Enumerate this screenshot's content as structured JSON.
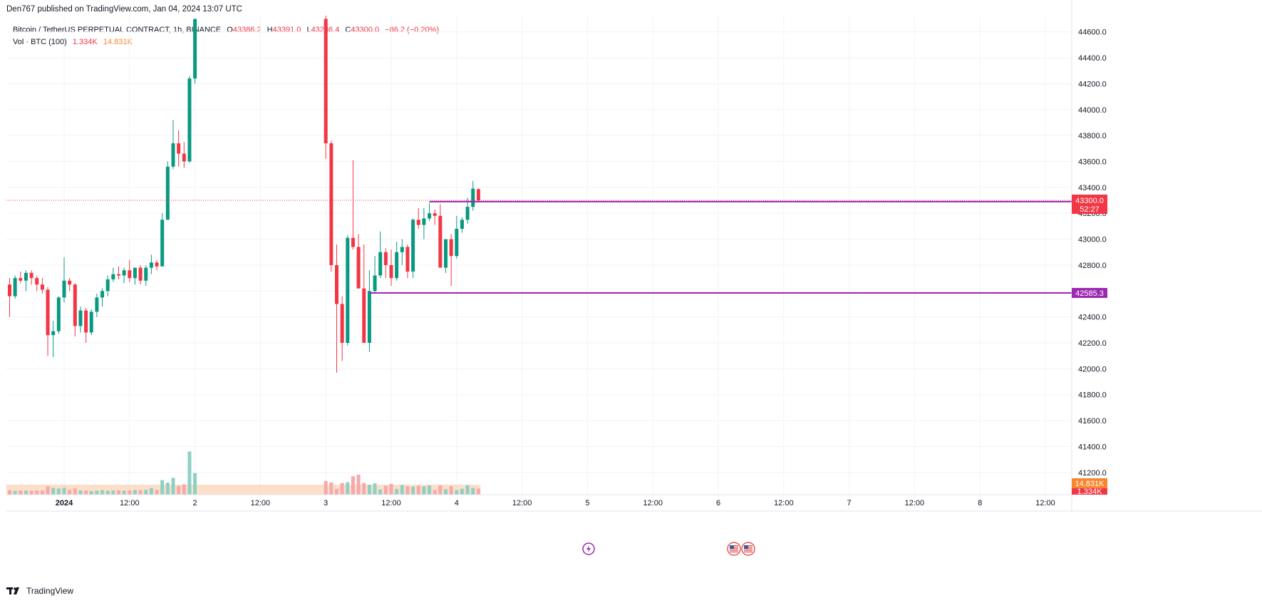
{
  "header": {
    "published_by": "Den767 published on TradingView.com, Jan 04, 2024 13:07 UTC"
  },
  "legend": {
    "symbol": "Bitcoin / TetherUS PERPETUAL CONTRACT, 1h, BINANCE",
    "open_label": "O",
    "open": "43386.2",
    "high_label": "H",
    "high": "43391.0",
    "low_label": "L",
    "low": "43286.4",
    "close_label": "C",
    "close": "43300.0",
    "change": "−86.2 (−0.20%)",
    "volume_label": "Vol · BTC (100)",
    "volume_value": "1.334K",
    "volume_ma": "14.831K"
  },
  "footer": {
    "brand": "TradingView"
  },
  "colors": {
    "up": "#089981",
    "down": "#f23645",
    "up_volume": "#8fd0c4",
    "down_volume": "#f7a8aa",
    "level": "#9c27b0",
    "price_badge": "#f23645",
    "volume_ma_badge": "#f7862f",
    "volume_ma_fill": "#f9c59c"
  },
  "icons": [
    "lightning-icon",
    "us-flag-icon",
    "us-flag-icon"
  ],
  "chart_data": {
    "type": "candlestick",
    "title": "Bitcoin / TetherUS PERPETUAL CONTRACT, 1h, BINANCE",
    "timeframe": "1h",
    "ylim": [
      41100,
      44700
    ],
    "price_ticks": [
      41200,
      41400,
      41600,
      41800,
      42000,
      42200,
      42400,
      42600,
      42800,
      43000,
      43200,
      43400,
      43600,
      43800,
      44000,
      44200,
      44400,
      44600
    ],
    "price_tick_labels": [
      "41200.0",
      "41400.0",
      "41600.0",
      "41800.0",
      "42000.0",
      "42200.0",
      "42400.0",
      "42600.0",
      "42800.0",
      "43000.0",
      "43200.0",
      "43400.0",
      "43600.0",
      "43800.0",
      "44000.0",
      "44200.0",
      "44400.0",
      "44600.0"
    ],
    "time_ticks": [
      {
        "label": "2024",
        "bar": 10,
        "bold": true
      },
      {
        "label": "12:00",
        "bar": 22
      },
      {
        "label": "2",
        "bar": 34
      },
      {
        "label": "12:00",
        "bar": 46
      },
      {
        "label": "3",
        "bar": 58
      },
      {
        "label": "12:00",
        "bar": 70
      },
      {
        "label": "4",
        "bar": 82
      },
      {
        "label": "12:00",
        "bar": 94
      },
      {
        "label": "5",
        "bar": 106
      },
      {
        "label": "12:00",
        "bar": 118
      },
      {
        "label": "6",
        "bar": 130
      },
      {
        "label": "12:00",
        "bar": 142
      },
      {
        "label": "7",
        "bar": 154
      },
      {
        "label": "12:00",
        "bar": 166
      },
      {
        "label": "8",
        "bar": 178
      },
      {
        "label": "12:00",
        "bar": 190
      }
    ],
    "candles": [
      [
        42650,
        42700,
        42400,
        42560
      ],
      [
        42560,
        42720,
        42540,
        42700
      ],
      [
        42700,
        42750,
        42660,
        42680
      ],
      [
        42680,
        42760,
        42600,
        42740
      ],
      [
        42740,
        42760,
        42650,
        42700
      ],
      [
        42700,
        42720,
        42600,
        42650
      ],
      [
        42650,
        42700,
        42580,
        42610
      ],
      [
        42610,
        42630,
        42100,
        42260
      ],
      [
        42260,
        42370,
        42090,
        42290
      ],
      [
        42290,
        42560,
        42270,
        42550
      ],
      [
        42550,
        42860,
        42510,
        42680
      ],
      [
        42680,
        42700,
        42600,
        42650
      ],
      [
        42650,
        42660,
        42250,
        42330
      ],
      [
        42330,
        42480,
        42280,
        42450
      ],
      [
        42450,
        42470,
        42200,
        42280
      ],
      [
        42280,
        42460,
        42260,
        42440
      ],
      [
        42440,
        42580,
        42400,
        42550
      ],
      [
        42550,
        42620,
        42480,
        42600
      ],
      [
        42600,
        42720,
        42560,
        42690
      ],
      [
        42690,
        42780,
        42670,
        42730
      ],
      [
        42730,
        42790,
        42690,
        42720
      ],
      [
        42720,
        42780,
        42660,
        42760
      ],
      [
        42760,
        42840,
        42670,
        42700
      ],
      [
        42700,
        42760,
        42650,
        42780
      ],
      [
        42780,
        42800,
        42650,
        42680
      ],
      [
        42680,
        42800,
        42640,
        42780
      ],
      [
        42780,
        42880,
        42730,
        42820
      ],
      [
        42820,
        42840,
        42760,
        42790
      ],
      [
        42790,
        43200,
        42790,
        43150
      ],
      [
        43150,
        43600,
        43150,
        43560
      ],
      [
        43560,
        43920,
        43540,
        43740
      ],
      [
        43740,
        43840,
        43560,
        43660
      ],
      [
        43660,
        43750,
        43550,
        43600
      ],
      [
        43600,
        44260,
        43590,
        44240
      ],
      [
        44240,
        44700,
        44200,
        44700
      ]
    ],
    "candles_after_gap": [
      [
        44700,
        44750,
        43620,
        43740
      ],
      [
        43740,
        43760,
        42750,
        42800
      ],
      [
        42800,
        42960,
        41970,
        42500
      ],
      [
        42500,
        42560,
        42060,
        42200
      ],
      [
        42200,
        43030,
        42180,
        43010
      ],
      [
        43010,
        43610,
        42920,
        42940
      ],
      [
        42940,
        43040,
        42620,
        42620
      ],
      [
        42620,
        42960,
        42400,
        42200
      ],
      [
        42200,
        42760,
        42130,
        42600
      ],
      [
        42600,
        42870,
        42580,
        42720
      ],
      [
        42720,
        43060,
        42700,
        42900
      ],
      [
        42900,
        42930,
        42700,
        42800
      ],
      [
        42800,
        42920,
        42640,
        42700
      ],
      [
        42700,
        42980,
        42680,
        42900
      ],
      [
        42900,
        43000,
        42800,
        42940
      ],
      [
        42940,
        42960,
        42700,
        42750
      ],
      [
        42750,
        43160,
        42700,
        43150
      ],
      [
        43150,
        43240,
        43080,
        43110
      ],
      [
        43110,
        43240,
        43000,
        43160
      ],
      [
        43160,
        43280,
        43140,
        43200
      ],
      [
        43200,
        43230,
        43110,
        43180
      ],
      [
        43180,
        43270,
        43140,
        42780
      ],
      [
        42780,
        42920,
        42740,
        43000
      ],
      [
        43000,
        43040,
        42640,
        42870
      ],
      [
        42870,
        43180,
        42850,
        43080
      ],
      [
        43080,
        43170,
        43050,
        43150
      ],
      [
        43150,
        43320,
        43120,
        43250
      ],
      [
        43250,
        43450,
        43220,
        43390
      ],
      [
        43386.2,
        43391.0,
        43286.4,
        43300.0
      ]
    ],
    "volume": {
      "max_axis": 16000,
      "values": [
        560,
        480,
        520,
        500,
        490,
        520,
        530,
        1040,
        850,
        770,
        860,
        610,
        780,
        520,
        510,
        440,
        500,
        560,
        500,
        520,
        540,
        500,
        530,
        600,
        560,
        610,
        830,
        590,
        1820,
        1500,
        2100,
        1100,
        1280,
        5380,
        2700,
        1720,
        1530,
        730,
        1460,
        1550,
        2300,
        2490,
        1470,
        1250,
        1410,
        660,
        1110,
        1350,
        720,
        1220,
        1060,
        1000,
        1120,
        1020,
        1160,
        590,
        1160,
        690,
        1060,
        550,
        740,
        1190,
        840,
        770,
        830,
        7000,
        14800,
        5700,
        3700,
        1900,
        2200,
        3500,
        3100,
        1700,
        2000,
        1300,
        1500,
        1200,
        900,
        1000,
        1100,
        1000,
        900,
        1000,
        800,
        800,
        1800,
        1000,
        1300,
        1300,
        1300,
        1500,
        1334
      ],
      "ma_label": "14.831K",
      "last_label": "1.334K"
    },
    "levels": [
      {
        "price": 43290.0,
        "label": "43290.0",
        "from_bar": 77
      },
      {
        "price": 42585.3,
        "label": "42585.3",
        "from_bar": 66
      }
    ],
    "last_price": {
      "price": 43300.0,
      "label": "43300.0",
      "countdown": "52:27"
    }
  }
}
